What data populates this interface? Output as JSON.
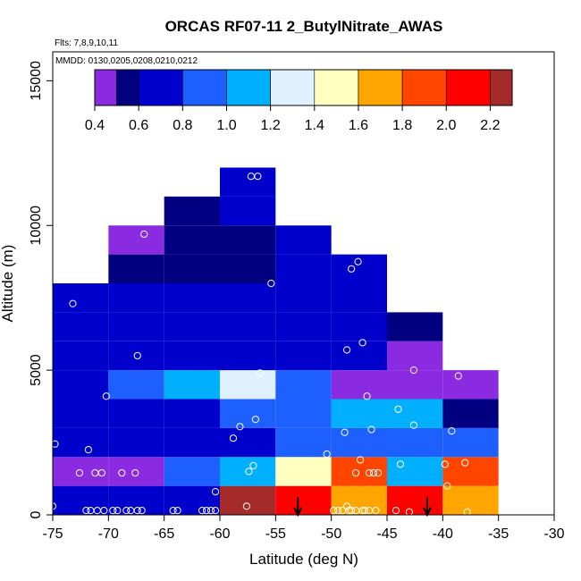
{
  "chart_data": {
    "type": "heatmap",
    "title": "ORCAS RF07-11 2_ButylNitrate_AWAS",
    "flights_label": "Flts: 7,8,9,10,11",
    "dates_label": "MMDD: 0130,0205,0208,0210,0212",
    "xlabel": "Latitude (deg N)",
    "ylabel": "Altitude (m)",
    "xlim": [
      -75,
      -30
    ],
    "ylim": [
      0,
      16000
    ],
    "x_ticks": [
      -75,
      -70,
      -65,
      -60,
      -55,
      -50,
      -45,
      -40,
      -35,
      -30
    ],
    "x_tick_labels": [
      "-75",
      "-70",
      "-65",
      "-60",
      "-55",
      "-50",
      "-45",
      "-40",
      "-35",
      "-30"
    ],
    "y_ticks": [
      0,
      5000,
      10000,
      15000
    ],
    "y_tick_labels": [
      "0",
      "5000",
      "10000",
      "15000"
    ],
    "bin_width_deg": 5,
    "bin_height_m": 1000,
    "colorbar": {
      "range": [
        0.4,
        2.3
      ],
      "ticks": [
        0.4,
        0.6,
        0.8,
        1.0,
        1.2,
        1.4,
        1.6,
        1.8,
        2.0,
        2.2
      ],
      "tick_labels": [
        "0.4",
        "0.6",
        "0.8",
        "1.0",
        "1.2",
        "1.4",
        "1.6",
        "1.8",
        "2.0",
        "2.2"
      ],
      "bin_edges": [
        0.4,
        0.5,
        0.6,
        0.8,
        1.0,
        1.2,
        1.4,
        1.6,
        1.8,
        2.0,
        2.2,
        2.3
      ],
      "colors": [
        "#8a2be2",
        "#000080",
        "#0000cd",
        "#1e60ff",
        "#00b0ff",
        "#dff0ff",
        "#ffffc0",
        "#ffa500",
        "#ff4500",
        "#ff0000",
        "#a52a2a"
      ]
    },
    "cells": [
      {
        "lat": -75,
        "alt": 0,
        "value": 0.7
      },
      {
        "lat": -70,
        "alt": 0,
        "value": 0.75
      },
      {
        "lat": -65,
        "alt": 0,
        "value": 0.72
      },
      {
        "lat": -60,
        "alt": 0,
        "value": 2.25
      },
      {
        "lat": -55,
        "alt": 0,
        "value": 2.05
      },
      {
        "lat": -50,
        "alt": 0,
        "value": 1.6
      },
      {
        "lat": -45,
        "alt": 0,
        "value": 2.05
      },
      {
        "lat": -40,
        "alt": 0,
        "value": 1.75
      },
      {
        "lat": -75,
        "alt": 1000,
        "value": 0.45
      },
      {
        "lat": -70,
        "alt": 1000,
        "value": 0.48
      },
      {
        "lat": -65,
        "alt": 1000,
        "value": 0.9
      },
      {
        "lat": -60,
        "alt": 1000,
        "value": 1.1
      },
      {
        "lat": -55,
        "alt": 1000,
        "value": 1.5
      },
      {
        "lat": -50,
        "alt": 1000,
        "value": 1.8
      },
      {
        "lat": -45,
        "alt": 1000,
        "value": 1.15
      },
      {
        "lat": -40,
        "alt": 1000,
        "value": 1.8
      },
      {
        "lat": -75,
        "alt": 2000,
        "value": 0.65
      },
      {
        "lat": -70,
        "alt": 2000,
        "value": 0.68
      },
      {
        "lat": -65,
        "alt": 2000,
        "value": 0.62
      },
      {
        "lat": -60,
        "alt": 2000,
        "value": 0.75
      },
      {
        "lat": -55,
        "alt": 2000,
        "value": 0.82
      },
      {
        "lat": -50,
        "alt": 2000,
        "value": 0.8
      },
      {
        "lat": -45,
        "alt": 2000,
        "value": 0.85
      },
      {
        "lat": -40,
        "alt": 2000,
        "value": 0.85
      },
      {
        "lat": -75,
        "alt": 3000,
        "value": 0.65
      },
      {
        "lat": -70,
        "alt": 3000,
        "value": 0.7
      },
      {
        "lat": -65,
        "alt": 3000,
        "value": 0.75
      },
      {
        "lat": -60,
        "alt": 3000,
        "value": 0.82
      },
      {
        "lat": -55,
        "alt": 3000,
        "value": 0.98
      },
      {
        "lat": -50,
        "alt": 3000,
        "value": 1.05
      },
      {
        "lat": -45,
        "alt": 3000,
        "value": 1.15
      },
      {
        "lat": -40,
        "alt": 3000,
        "value": 0.55
      },
      {
        "lat": -75,
        "alt": 4000,
        "value": 0.65
      },
      {
        "lat": -70,
        "alt": 4000,
        "value": 0.92
      },
      {
        "lat": -65,
        "alt": 4000,
        "value": 1.05
      },
      {
        "lat": -60,
        "alt": 4000,
        "value": 1.3
      },
      {
        "lat": -55,
        "alt": 4000,
        "value": 0.9
      },
      {
        "lat": -50,
        "alt": 4000,
        "value": 0.45
      },
      {
        "lat": -45,
        "alt": 4000,
        "value": 0.45
      },
      {
        "lat": -40,
        "alt": 4000,
        "value": 0.45
      },
      {
        "lat": -75,
        "alt": 5000,
        "value": 0.7
      },
      {
        "lat": -70,
        "alt": 5000,
        "value": 0.7
      },
      {
        "lat": -65,
        "alt": 5000,
        "value": 0.68
      },
      {
        "lat": -60,
        "alt": 5000,
        "value": 0.66
      },
      {
        "lat": -55,
        "alt": 5000,
        "value": 0.66
      },
      {
        "lat": -50,
        "alt": 5000,
        "value": 0.68
      },
      {
        "lat": -45,
        "alt": 5000,
        "value": 0.45
      },
      {
        "lat": -75,
        "alt": 6000,
        "value": 0.72
      },
      {
        "lat": -70,
        "alt": 6000,
        "value": 0.7
      },
      {
        "lat": -65,
        "alt": 6000,
        "value": 0.68
      },
      {
        "lat": -60,
        "alt": 6000,
        "value": 0.66
      },
      {
        "lat": -55,
        "alt": 6000,
        "value": 0.64
      },
      {
        "lat": -50,
        "alt": 6000,
        "value": 0.66
      },
      {
        "lat": -45,
        "alt": 6000,
        "value": 0.55
      },
      {
        "lat": -75,
        "alt": 7000,
        "value": 0.72
      },
      {
        "lat": -70,
        "alt": 7000,
        "value": 0.7
      },
      {
        "lat": -65,
        "alt": 7000,
        "value": 0.66
      },
      {
        "lat": -60,
        "alt": 7000,
        "value": 0.62
      },
      {
        "lat": -55,
        "alt": 7000,
        "value": 0.62
      },
      {
        "lat": -50,
        "alt": 7000,
        "value": 0.66
      },
      {
        "lat": -70,
        "alt": 8000,
        "value": 0.58
      },
      {
        "lat": -65,
        "alt": 8000,
        "value": 0.55
      },
      {
        "lat": -60,
        "alt": 8000,
        "value": 0.5
      },
      {
        "lat": -55,
        "alt": 8000,
        "value": 0.6
      },
      {
        "lat": -50,
        "alt": 8000,
        "value": 0.68
      },
      {
        "lat": -70,
        "alt": 9000,
        "value": 0.45
      },
      {
        "lat": -65,
        "alt": 9000,
        "value": 0.52
      },
      {
        "lat": -60,
        "alt": 9000,
        "value": 0.58
      },
      {
        "lat": -55,
        "alt": 9000,
        "value": 0.66
      },
      {
        "lat": -65,
        "alt": 10000,
        "value": 0.58
      },
      {
        "lat": -60,
        "alt": 10000,
        "value": 0.62
      },
      {
        "lat": -60,
        "alt": 11000,
        "value": 0.7
      }
    ],
    "points": [
      [
        -75,
        300
      ],
      [
        -74.8,
        2450
      ],
      [
        -73.2,
        7300
      ],
      [
        -72.6,
        1450
      ],
      [
        -72,
        150
      ],
      [
        -71.8,
        2250
      ],
      [
        -71.6,
        150
      ],
      [
        -71.2,
        1450
      ],
      [
        -71,
        150
      ],
      [
        -70.6,
        1450
      ],
      [
        -70.4,
        150
      ],
      [
        -70.2,
        4100
      ],
      [
        -69.6,
        150
      ],
      [
        -69.2,
        150
      ],
      [
        -68.8,
        1450
      ],
      [
        -68.4,
        150
      ],
      [
        -68,
        150
      ],
      [
        -67.6,
        1450
      ],
      [
        -67.4,
        150
      ],
      [
        -67.4,
        5500
      ],
      [
        -67,
        150
      ],
      [
        -66.8,
        9700
      ],
      [
        -64.2,
        150
      ],
      [
        -63.8,
        150
      ],
      [
        -61.6,
        150
      ],
      [
        -61.2,
        150
      ],
      [
        -60.8,
        150
      ],
      [
        -60.4,
        150
      ],
      [
        -60.4,
        800
      ],
      [
        -58.8,
        2650
      ],
      [
        -58.2,
        3050
      ],
      [
        -57.6,
        300
      ],
      [
        -57.4,
        1500
      ],
      [
        -57.2,
        11700
      ],
      [
        -57,
        1700
      ],
      [
        -56.8,
        3300
      ],
      [
        -56.6,
        11700
      ],
      [
        -56.4,
        4900
      ],
      [
        -55.4,
        8000
      ],
      [
        -50.4,
        2100
      ],
      [
        -49.8,
        150
      ],
      [
        -49.4,
        150
      ],
      [
        -49,
        150
      ],
      [
        -48.8,
        2850
      ],
      [
        -48.6,
        300
      ],
      [
        -48.6,
        5700
      ],
      [
        -48.4,
        150
      ],
      [
        -48.2,
        150
      ],
      [
        -48.2,
        8500
      ],
      [
        -47.8,
        150
      ],
      [
        -47.8,
        1450
      ],
      [
        -47.6,
        8750
      ],
      [
        -47.4,
        1900
      ],
      [
        -47.2,
        150
      ],
      [
        -47.2,
        5950
      ],
      [
        -47,
        150
      ],
      [
        -46.8,
        4100
      ],
      [
        -46.6,
        150
      ],
      [
        -46.6,
        1450
      ],
      [
        -46.4,
        2950
      ],
      [
        -46.2,
        1450
      ],
      [
        -46,
        150
      ],
      [
        -45.8,
        1450
      ],
      [
        -44.2,
        150
      ],
      [
        -44,
        3650
      ],
      [
        -43.8,
        1750
      ],
      [
        -43,
        100
      ],
      [
        -42.6,
        3100
      ],
      [
        -42.6,
        5000
      ],
      [
        -39.8,
        1750
      ],
      [
        -39.6,
        1000
      ],
      [
        -39.2,
        2900
      ],
      [
        -38.6,
        4800
      ],
      [
        -38,
        1800
      ],
      [
        -37.8,
        100
      ]
    ],
    "arrows_lat": [
      -53,
      -41.4
    ]
  }
}
